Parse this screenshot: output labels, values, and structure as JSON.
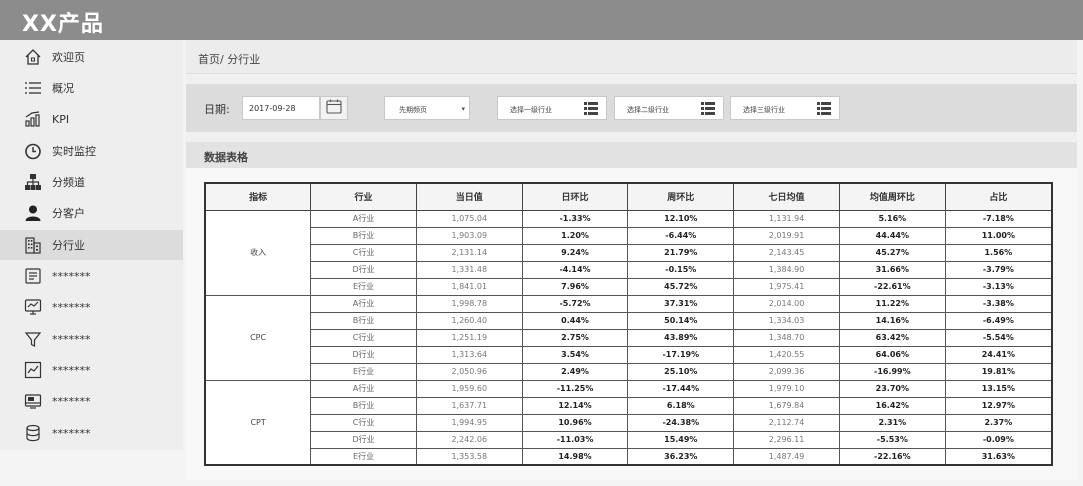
{
  "app": {
    "title": "XX产品"
  },
  "sidebar": {
    "items": [
      {
        "label": "欢迎页",
        "icon": "home-icon",
        "active": false
      },
      {
        "label": "概况",
        "icon": "list-icon",
        "active": false
      },
      {
        "label": "KPI",
        "icon": "kpi-chart-icon",
        "active": false
      },
      {
        "label": "实时监控",
        "icon": "timer-icon",
        "active": false
      },
      {
        "label": "分频道",
        "icon": "hierarchy-icon",
        "active": false
      },
      {
        "label": "分客户",
        "icon": "user-icon",
        "active": false
      },
      {
        "label": "分行业",
        "icon": "building-icon",
        "active": true
      },
      {
        "label": "*******",
        "icon": "document-icon",
        "active": false
      },
      {
        "label": "*******",
        "icon": "monitor-icon",
        "active": false
      },
      {
        "label": "*******",
        "icon": "filter-icon",
        "active": false
      },
      {
        "label": "*******",
        "icon": "line-chart-icon",
        "active": false
      },
      {
        "label": "*******",
        "icon": "screen-icon",
        "active": false
      },
      {
        "label": "*******",
        "icon": "database-icon",
        "active": false
      }
    ]
  },
  "breadcrumb": "首页/ 分行业",
  "filters": {
    "date_label": "日期:",
    "date_value": "2017-09-28",
    "compare_select": "先期频页",
    "industry1_placeholder": "选择一级行业",
    "industry2_placeholder": "选择二级行业",
    "industry3_placeholder": "选择三级行业"
  },
  "section_title": "数据表格",
  "table": {
    "columns": [
      "指标",
      "行业",
      "当日值",
      "日环比",
      "周环比",
      "七日均值",
      "均值周环比",
      "占比"
    ],
    "groups": [
      {
        "metric": "收入",
        "rows": [
          {
            "industry": "A行业",
            "value": "1,075.04",
            "dod": "-1.33%",
            "wow": "12.10%",
            "avg7": "1,131.94",
            "avg_wow": "5.16%",
            "share": "-7.18%"
          },
          {
            "industry": "B行业",
            "value": "1,903.09",
            "dod": "1.20%",
            "wow": "-6.44%",
            "avg7": "2,019.91",
            "avg_wow": "44.44%",
            "share": "11.00%"
          },
          {
            "industry": "C行业",
            "value": "2,131.14",
            "dod": "9.24%",
            "wow": "21.79%",
            "avg7": "2,143.45",
            "avg_wow": "45.27%",
            "share": "1.56%"
          },
          {
            "industry": "D行业",
            "value": "1,331.48",
            "dod": "-4.14%",
            "wow": "-0.15%",
            "avg7": "1,384.90",
            "avg_wow": "31.66%",
            "share": "-3.79%"
          },
          {
            "industry": "E行业",
            "value": "1,841.01",
            "dod": "7.96%",
            "wow": "45.72%",
            "avg7": "1,975.41",
            "avg_wow": "-22.61%",
            "share": "-3.13%"
          }
        ]
      },
      {
        "metric": "CPC",
        "rows": [
          {
            "industry": "A行业",
            "value": "1,998.78",
            "dod": "-5.72%",
            "wow": "37.31%",
            "avg7": "2,014.00",
            "avg_wow": "11.22%",
            "share": "-3.38%"
          },
          {
            "industry": "B行业",
            "value": "1,260.40",
            "dod": "0.44%",
            "wow": "50.14%",
            "avg7": "1,334.03",
            "avg_wow": "14.16%",
            "share": "-6.49%"
          },
          {
            "industry": "C行业",
            "value": "1,251.19",
            "dod": "2.75%",
            "wow": "43.89%",
            "avg7": "1,348.70",
            "avg_wow": "63.42%",
            "share": "-5.54%"
          },
          {
            "industry": "D行业",
            "value": "1,313.64",
            "dod": "3.54%",
            "wow": "-17.19%",
            "avg7": "1,420.55",
            "avg_wow": "64.06%",
            "share": "24.41%"
          },
          {
            "industry": "E行业",
            "value": "2,050.96",
            "dod": "2.49%",
            "wow": "25.10%",
            "avg7": "2,099.36",
            "avg_wow": "-16.99%",
            "share": "19.81%"
          }
        ]
      },
      {
        "metric": "CPT",
        "rows": [
          {
            "industry": "A行业",
            "value": "1,959.60",
            "dod": "-11.25%",
            "wow": "-17.44%",
            "avg7": "1,979.10",
            "avg_wow": "23.70%",
            "share": "13.15%"
          },
          {
            "industry": "B行业",
            "value": "1,637.71",
            "dod": "12.14%",
            "wow": "6.18%",
            "avg7": "1,679.84",
            "avg_wow": "16.42%",
            "share": "12.97%"
          },
          {
            "industry": "C行业",
            "value": "1,994.95",
            "dod": "10.96%",
            "wow": "-24.38%",
            "avg7": "2,112.74",
            "avg_wow": "2.31%",
            "share": "2.37%"
          },
          {
            "industry": "D行业",
            "value": "2,242.06",
            "dod": "-11.03%",
            "wow": "15.49%",
            "avg7": "2,296.11",
            "avg_wow": "-5.53%",
            "share": "-0.09%"
          },
          {
            "industry": "E行业",
            "value": "1,353.58",
            "dod": "14.98%",
            "wow": "36.23%",
            "avg7": "1,487.49",
            "avg_wow": "-22.16%",
            "share": "31.63%"
          }
        ]
      }
    ]
  }
}
